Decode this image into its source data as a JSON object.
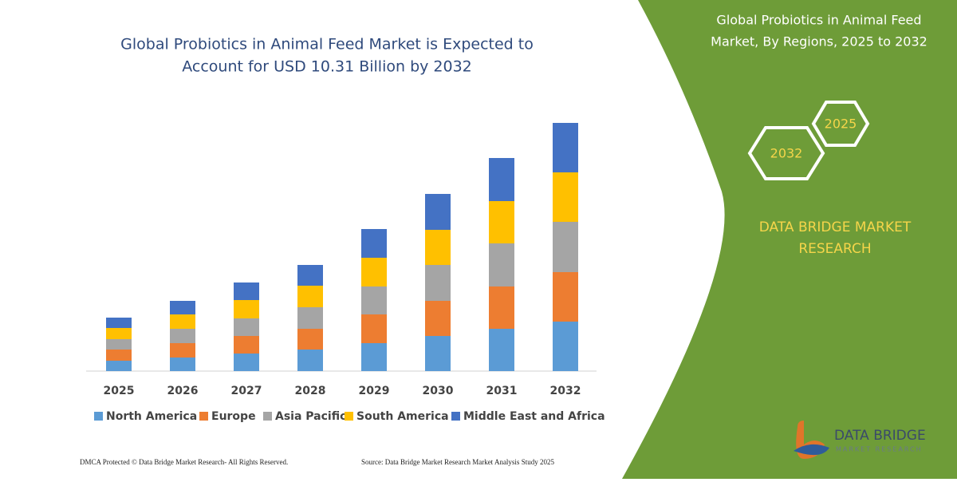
{
  "chart_data": {
    "type": "stacked-bar",
    "title": [
      "Global Probiotics in Animal Feed Market is Expected to",
      "Account for USD 10.31 Billion by 2032"
    ],
    "categories": [
      "2025",
      "2026",
      "2027",
      "2028",
      "2029",
      "2030",
      "2031",
      "2032"
    ],
    "series": [
      {
        "name": "North America",
        "color": "#5b9bd5",
        "values": [
          13,
          17,
          22,
          27,
          35,
          44,
          53,
          62
        ]
      },
      {
        "name": "Europe",
        "color": "#ed7d31",
        "values": [
          14,
          18,
          22,
          26,
          36,
          44,
          53,
          62
        ]
      },
      {
        "name": "Asia Pacific",
        "color": "#a5a5a5",
        "values": [
          13,
          18,
          22,
          27,
          35,
          45,
          54,
          63
        ]
      },
      {
        "name": "South America",
        "color": "#ffc000",
        "values": [
          14,
          18,
          23,
          27,
          36,
          44,
          53,
          62
        ]
      },
      {
        "name": "Middle East and Africa",
        "color": "#4472c4",
        "values": [
          13,
          17,
          22,
          26,
          36,
          45,
          54,
          62
        ]
      }
    ],
    "ylim": [
      0,
      320
    ],
    "legend": "bottom"
  },
  "side_panel": {
    "title": [
      "Global Probiotics in Animal Feed",
      "Market, By Regions, 2025 to 2032"
    ],
    "hexagons": [
      "2025",
      "2032"
    ],
    "brand": [
      "DATA BRIDGE MARKET",
      "RESEARCH"
    ]
  },
  "logo": {
    "name": "DATA BRIDGE",
    "tagline": "MARKET RESEARCH"
  },
  "footer": {
    "left": "DMCA Protected © Data Bridge Market Research-  All Rights Reserved.",
    "right": "Source: Data Bridge Market Research  Market Analysis Study 2025"
  }
}
